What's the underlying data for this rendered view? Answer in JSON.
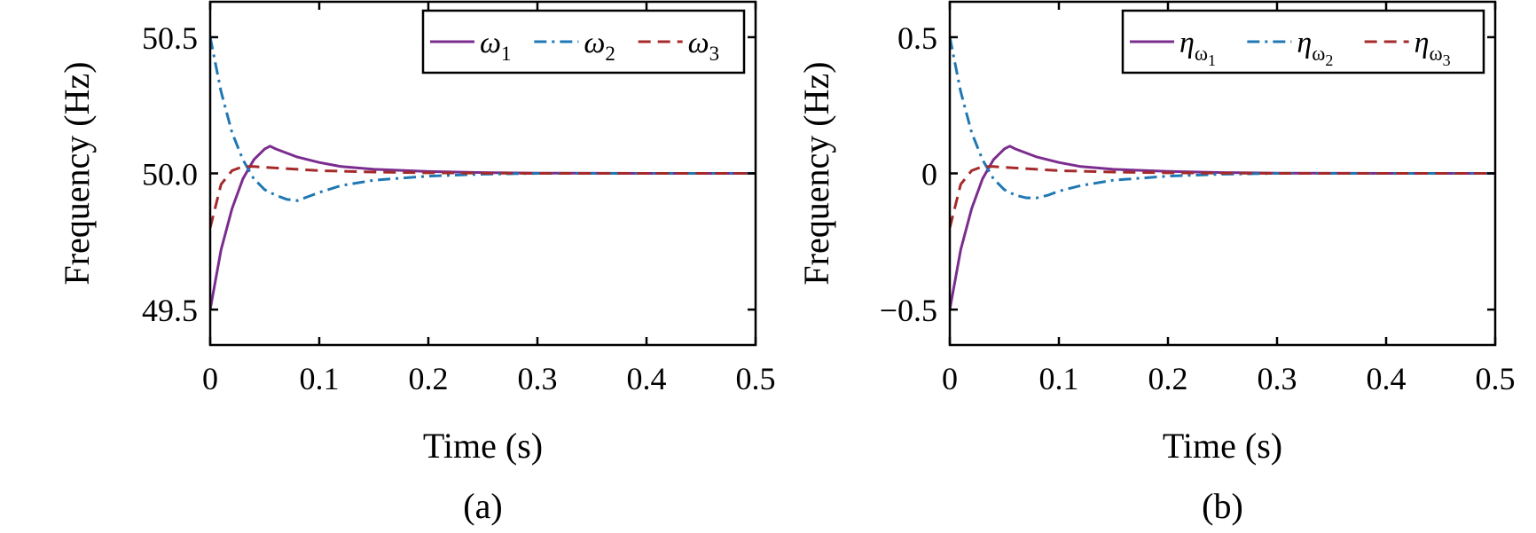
{
  "chart_data": [
    {
      "id": "a",
      "type": "line",
      "caption": "(a)",
      "xlabel": "Time (s)",
      "ylabel": "Frequency (Hz)",
      "xlim": [
        0,
        0.5
      ],
      "ylim": [
        49.37,
        50.63
      ],
      "xticks": [
        0,
        0.1,
        0.2,
        0.3,
        0.4,
        0.5
      ],
      "xtick_labels": [
        "0",
        "0.1",
        "0.2",
        "0.3",
        "0.4",
        "0.5"
      ],
      "yticks": [
        49.5,
        50.0,
        50.5
      ],
      "ytick_labels": [
        "49.5",
        "50.0",
        "50.5"
      ],
      "grid": false,
      "legend_position": "top-right",
      "series": [
        {
          "name": "ω",
          "sub": "1",
          "subsub": "",
          "color": "#7B2D8E",
          "dash": "solid",
          "x": [
            0,
            0.01,
            0.02,
            0.03,
            0.04,
            0.05,
            0.055,
            0.06,
            0.08,
            0.1,
            0.12,
            0.15,
            0.2,
            0.25,
            0.3,
            0.4,
            0.5
          ],
          "y": [
            49.5,
            49.72,
            49.87,
            49.98,
            50.05,
            50.09,
            50.1,
            50.09,
            50.06,
            50.04,
            50.025,
            50.015,
            50.007,
            50.003,
            50.001,
            50.0,
            50.0
          ]
        },
        {
          "name": "ω",
          "sub": "2",
          "subsub": "",
          "color": "#1F77B4",
          "dash": "dashdot",
          "x": [
            0,
            0.01,
            0.02,
            0.03,
            0.04,
            0.05,
            0.06,
            0.07,
            0.08,
            0.09,
            0.1,
            0.12,
            0.15,
            0.2,
            0.25,
            0.3,
            0.4,
            0.5
          ],
          "y": [
            50.5,
            50.3,
            50.15,
            50.05,
            49.98,
            49.94,
            49.92,
            49.905,
            49.9,
            49.915,
            49.93,
            49.955,
            49.975,
            49.99,
            49.997,
            50.0,
            50.0,
            50.0
          ]
        },
        {
          "name": "ω",
          "sub": "3",
          "subsub": "",
          "color": "#A52A2A",
          "dash": "dashed",
          "x": [
            0,
            0.01,
            0.02,
            0.03,
            0.04,
            0.06,
            0.08,
            0.1,
            0.15,
            0.2,
            0.3,
            0.5
          ],
          "y": [
            49.8,
            49.96,
            50.01,
            50.025,
            50.025,
            50.02,
            50.015,
            50.01,
            50.005,
            50.002,
            50.0,
            50.0
          ]
        }
      ]
    },
    {
      "id": "b",
      "type": "line",
      "caption": "(b)",
      "xlabel": "Time (s)",
      "ylabel": "Frequency (Hz)",
      "xlim": [
        0,
        0.5
      ],
      "ylim": [
        -0.63,
        0.63
      ],
      "xticks": [
        0,
        0.1,
        0.2,
        0.3,
        0.4,
        0.5
      ],
      "xtick_labels": [
        "0",
        "0.1",
        "0.2",
        "0.3",
        "0.4",
        "0.5"
      ],
      "yticks": [
        -0.5,
        0,
        0.5
      ],
      "ytick_labels": [
        "−0.5",
        "0",
        "0.5"
      ],
      "grid": false,
      "legend_position": "top-right",
      "series": [
        {
          "name": "η",
          "sub": "ω",
          "subsub": "1",
          "color": "#7B2D8E",
          "dash": "solid",
          "x": [
            0,
            0.01,
            0.02,
            0.03,
            0.04,
            0.05,
            0.055,
            0.06,
            0.08,
            0.1,
            0.12,
            0.15,
            0.2,
            0.25,
            0.3,
            0.4,
            0.5
          ],
          "y": [
            -0.5,
            -0.28,
            -0.13,
            -0.02,
            0.05,
            0.09,
            0.1,
            0.09,
            0.06,
            0.04,
            0.025,
            0.015,
            0.007,
            0.003,
            0.001,
            0.0,
            0.0
          ]
        },
        {
          "name": "η",
          "sub": "ω",
          "subsub": "2",
          "color": "#1F77B4",
          "dash": "dashdot",
          "x": [
            0,
            0.01,
            0.02,
            0.03,
            0.04,
            0.05,
            0.06,
            0.07,
            0.08,
            0.09,
            0.1,
            0.12,
            0.15,
            0.2,
            0.25,
            0.3,
            0.4,
            0.5
          ],
          "y": [
            0.5,
            0.3,
            0.15,
            0.05,
            -0.02,
            -0.06,
            -0.08,
            -0.09,
            -0.09,
            -0.08,
            -0.065,
            -0.045,
            -0.025,
            -0.01,
            -0.003,
            0.0,
            0.0,
            0.0
          ]
        },
        {
          "name": "η",
          "sub": "ω",
          "subsub": "3",
          "color": "#A52A2A",
          "dash": "dashed",
          "x": [
            0,
            0.01,
            0.02,
            0.03,
            0.04,
            0.06,
            0.08,
            0.1,
            0.15,
            0.2,
            0.3,
            0.5
          ],
          "y": [
            -0.2,
            -0.04,
            0.01,
            0.025,
            0.025,
            0.02,
            0.015,
            0.01,
            0.005,
            0.002,
            0.0,
            0.0
          ]
        }
      ]
    }
  ]
}
